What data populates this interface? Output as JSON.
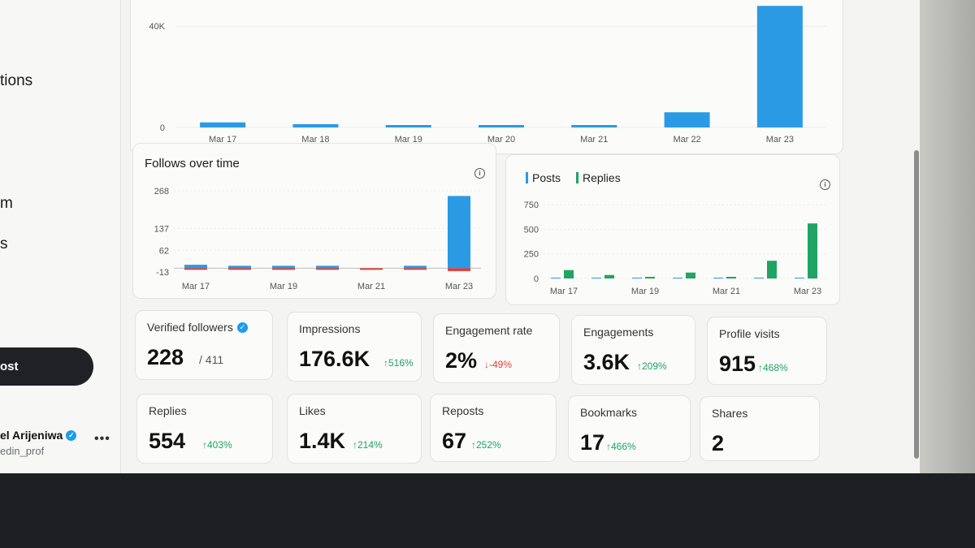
{
  "sidebar": {
    "nav_fragments": [
      "tions",
      "m",
      "s"
    ],
    "post_button": "ost",
    "user": {
      "name": "el Arijeniwa",
      "handle": "edin_prof",
      "more": "•••"
    }
  },
  "impressions_chart": {
    "chart_data": {
      "type": "bar",
      "categories": [
        "Mar 17",
        "Mar 18",
        "Mar 19",
        "Mar 20",
        "Mar 21",
        "Mar 22",
        "Mar 23"
      ],
      "values": [
        2000,
        1300,
        500,
        400,
        300,
        6000,
        48000
      ],
      "ytick_labels": [
        "40K",
        "0"
      ],
      "yticks": [
        40000,
        0
      ],
      "ylim": [
        0,
        50000
      ],
      "color": "#2b9ae5"
    }
  },
  "follows_chart": {
    "title": "Follows over time",
    "chart_data": {
      "type": "bar",
      "categories": [
        "Mar 17",
        "Mar 18",
        "Mar 19",
        "Mar 20",
        "Mar 21",
        "Mar 22",
        "Mar 23"
      ],
      "xtick_labels": [
        "Mar 17",
        "Mar 19",
        "Mar 21",
        "Mar 23"
      ],
      "ytick_labels": [
        "268",
        "137",
        "62",
        "-13"
      ],
      "yticks": [
        268,
        137,
        62,
        -13
      ],
      "ylim": [
        -13,
        268
      ],
      "series": [
        {
          "values": [
            12,
            8,
            2,
            5,
            0,
            7,
            250
          ],
          "color": "#2b9ae5"
        },
        {
          "values": [
            -3,
            -3,
            -2,
            -3,
            -2,
            -1,
            -10
          ],
          "color": "#e0403a"
        }
      ]
    }
  },
  "posts_replies_chart": {
    "chart_data": {
      "type": "bar",
      "categories": [
        "Mar 17",
        "Mar 18",
        "Mar 19",
        "Mar 20",
        "Mar 21",
        "Mar 22",
        "Mar 23"
      ],
      "xtick_labels": [
        "Mar 17",
        "Mar 19",
        "Mar 21",
        "Mar 23"
      ],
      "ytick_labels": [
        "750",
        "500",
        "250",
        "0"
      ],
      "yticks": [
        750,
        500,
        250,
        0
      ],
      "ylim": [
        0,
        760
      ],
      "legend": "top-left",
      "series": [
        {
          "name": "Posts",
          "values": [
            0,
            0,
            0,
            0,
            0,
            2,
            5
          ],
          "color": "#2b9ae5"
        },
        {
          "name": "Replies",
          "values": [
            85,
            35,
            15,
            60,
            5,
            180,
            560
          ],
          "color": "#1fa463"
        }
      ]
    }
  },
  "metrics_row1": [
    {
      "label": "Verified followers",
      "value": "228",
      "sub": "/ 411"
    },
    {
      "label": "Impressions",
      "value": "176.6K",
      "change": "↑516%",
      "direction": "up"
    },
    {
      "label": "Engagement rate",
      "value": "2%",
      "change": "↓-49%",
      "direction": "down"
    },
    {
      "label": "Engagements",
      "value": "3.6K",
      "change": "↑209%",
      "direction": "up"
    },
    {
      "label": "Profile visits",
      "value": "915",
      "change": "↑468%",
      "direction": "up"
    }
  ],
  "metrics_row2": [
    {
      "label": "Replies",
      "value": "554",
      "change": "↑403%",
      "direction": "up"
    },
    {
      "label": "Likes",
      "value": "1.4K",
      "change": "↑214%",
      "direction": "up"
    },
    {
      "label": "Reposts",
      "value": "67",
      "change": "↑252%",
      "direction": "up"
    },
    {
      "label": "Bookmarks",
      "value": "17",
      "change": "↑466%",
      "direction": "up"
    },
    {
      "label": "Shares",
      "value": "2"
    }
  ],
  "colors": {
    "blue": "#2b9ae5",
    "green": "#1fa463",
    "red": "#e0403a"
  }
}
